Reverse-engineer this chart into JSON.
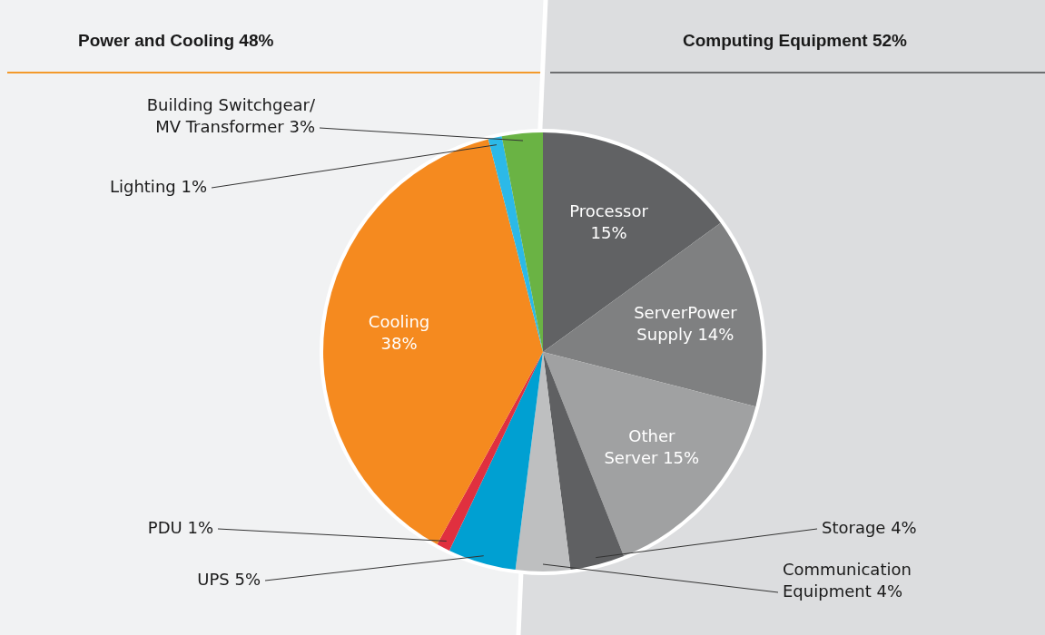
{
  "chart_data": {
    "type": "pie",
    "annotations": [
      "Power and Cooling 48%",
      "Computing Equipment 52%"
    ],
    "categories": [
      "Processor",
      "ServerPower Supply",
      "Other Server",
      "Storage",
      "Communication Equipment",
      "UPS",
      "PDU",
      "Cooling",
      "Lighting",
      "Building Switchgear/ MV Transformer"
    ],
    "values": [
      15,
      14,
      15,
      4,
      4,
      5,
      1,
      38,
      1,
      3
    ],
    "value_labels": [
      "15%",
      "14%",
      "15%",
      "4%",
      "4%",
      "5%",
      "1%",
      "38%",
      "1%",
      "3%"
    ],
    "colors": [
      "#616264",
      "#7f8081",
      "#a0a1a2",
      "#5f6062",
      "#bebfc0",
      "#00a0d2",
      "#e0303f",
      "#f58a1f",
      "#2cb9e8",
      "#6ab344"
    ],
    "legend": false
  }
}
